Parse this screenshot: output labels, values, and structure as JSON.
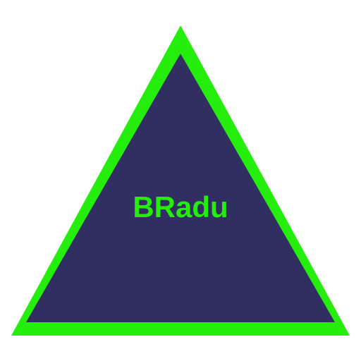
{
  "logo": {
    "text": "BRadu",
    "colors": {
      "fill": "#312e61",
      "outline": "#25ee0c",
      "text": "#25ee0c",
      "background": "#ffffff"
    }
  }
}
